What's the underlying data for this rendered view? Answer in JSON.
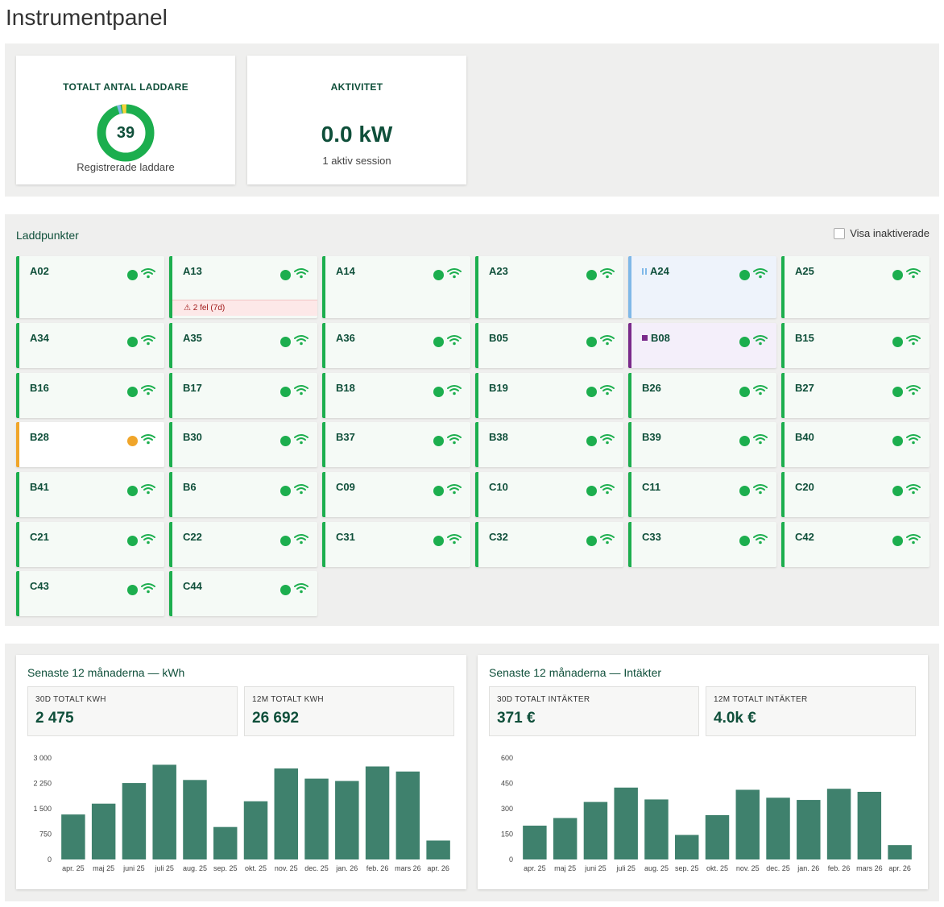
{
  "page_title": "Instrumentpanel",
  "kpis": {
    "chargers": {
      "title": "TOTALT ANTAL LADDARE",
      "count": "39",
      "subtitle": "Registrerade laddare"
    },
    "activity": {
      "title": "AKTIVITET",
      "value": "0.0 kW",
      "subtitle": "1 aktiv session"
    }
  },
  "colors": {
    "available": "#1cae4e",
    "warning": "#f0a52a",
    "paused": "#7fb8e8",
    "reserved": "#7a2a8a",
    "bar": "#3f816d"
  },
  "charge_points": {
    "title": "Laddpunkter",
    "show_inactive_label": "Visa inaktiverade",
    "items": [
      {
        "name": "A02",
        "state": "green",
        "status_dot": "green"
      },
      {
        "name": "A13",
        "state": "green",
        "status_dot": "green",
        "error": "2 fel (7d)"
      },
      {
        "name": "A14",
        "state": "green",
        "status_dot": "green"
      },
      {
        "name": "A23",
        "state": "green",
        "status_dot": "green"
      },
      {
        "name": "A24",
        "state": "blue",
        "status_dot": "green",
        "mark": "pause-icon"
      },
      {
        "name": "A25",
        "state": "green",
        "status_dot": "green"
      },
      {
        "name": "A34",
        "state": "green",
        "status_dot": "green"
      },
      {
        "name": "A35",
        "state": "green",
        "status_dot": "green"
      },
      {
        "name": "A36",
        "state": "green",
        "status_dot": "green"
      },
      {
        "name": "B05",
        "state": "green",
        "status_dot": "green"
      },
      {
        "name": "B08",
        "state": "purple",
        "status_dot": "green",
        "mark": "square-icon"
      },
      {
        "name": "B15",
        "state": "green",
        "status_dot": "green"
      },
      {
        "name": "B16",
        "state": "green",
        "status_dot": "green"
      },
      {
        "name": "B17",
        "state": "green",
        "status_dot": "green"
      },
      {
        "name": "B18",
        "state": "green",
        "status_dot": "green"
      },
      {
        "name": "B19",
        "state": "green",
        "status_dot": "green"
      },
      {
        "name": "B26",
        "state": "green",
        "status_dot": "green"
      },
      {
        "name": "B27",
        "state": "green",
        "status_dot": "green"
      },
      {
        "name": "B28",
        "state": "orange",
        "status_dot": "orange"
      },
      {
        "name": "B30",
        "state": "green",
        "status_dot": "green"
      },
      {
        "name": "B37",
        "state": "green",
        "status_dot": "green"
      },
      {
        "name": "B38",
        "state": "green",
        "status_dot": "green"
      },
      {
        "name": "B39",
        "state": "green",
        "status_dot": "green"
      },
      {
        "name": "B40",
        "state": "green",
        "status_dot": "green"
      },
      {
        "name": "B41",
        "state": "green",
        "status_dot": "green"
      },
      {
        "name": "B6",
        "state": "green",
        "status_dot": "green"
      },
      {
        "name": "C09",
        "state": "green",
        "status_dot": "green"
      },
      {
        "name": "C10",
        "state": "green",
        "status_dot": "green"
      },
      {
        "name": "C11",
        "state": "green",
        "status_dot": "green"
      },
      {
        "name": "C20",
        "state": "green",
        "status_dot": "green"
      },
      {
        "name": "C21",
        "state": "green",
        "status_dot": "green"
      },
      {
        "name": "C22",
        "state": "green",
        "status_dot": "green"
      },
      {
        "name": "C31",
        "state": "green",
        "status_dot": "green"
      },
      {
        "name": "C32",
        "state": "green",
        "status_dot": "green"
      },
      {
        "name": "C33",
        "state": "green",
        "status_dot": "green"
      },
      {
        "name": "C42",
        "state": "green",
        "status_dot": "green"
      },
      {
        "name": "C43",
        "state": "green",
        "status_dot": "green"
      },
      {
        "name": "C44",
        "state": "green",
        "status_dot": "green"
      }
    ]
  },
  "kwh_panel": {
    "title": "Senaste 12 månaderna — kWh",
    "stats": [
      {
        "label": "30D TOTALT KWH",
        "value": "2 475"
      },
      {
        "label": "12M TOTALT KWH",
        "value": "26 692"
      }
    ]
  },
  "revenue_panel": {
    "title": "Senaste 12 månaderna — Intäkter",
    "stats": [
      {
        "label": "30D TOTALT INTÄKTER",
        "value": "371 €"
      },
      {
        "label": "12M TOTALT INTÄKTER",
        "value": "4.0k €"
      }
    ]
  },
  "chart_data": [
    {
      "type": "bar",
      "title": "Senaste 12 månaderna — kWh",
      "categories": [
        "apr. 25",
        "maj 25",
        "juni 25",
        "juli 25",
        "aug. 25",
        "sep. 25",
        "okt. 25",
        "nov. 25",
        "dec. 25",
        "jan. 26",
        "feb. 26",
        "mars 26",
        "apr. 26"
      ],
      "values": [
        1330,
        1650,
        2260,
        2800,
        2350,
        960,
        1720,
        2690,
        2390,
        2320,
        2750,
        2600,
        560
      ],
      "ylim": [
        0,
        3000
      ],
      "yticks": [
        0,
        750,
        1500,
        2250,
        3000
      ],
      "ytick_labels": [
        "0",
        "750",
        "1 500",
        "2 250",
        "3 000"
      ],
      "grid": false
    },
    {
      "type": "bar",
      "title": "Senaste 12 månaderna — Intäkter",
      "categories": [
        "apr. 25",
        "maj 25",
        "juni 25",
        "juli 25",
        "aug. 25",
        "sep. 25",
        "okt. 25",
        "nov. 25",
        "dec. 25",
        "jan. 26",
        "feb. 26",
        "mars 26",
        "apr. 26"
      ],
      "values": [
        200,
        245,
        340,
        425,
        355,
        145,
        262,
        412,
        365,
        352,
        418,
        400,
        85
      ],
      "ylim": [
        0,
        600
      ],
      "yticks": [
        0,
        150,
        300,
        450,
        600
      ],
      "ytick_labels": [
        "0",
        "150",
        "300",
        "450",
        "600"
      ],
      "grid": false
    }
  ]
}
